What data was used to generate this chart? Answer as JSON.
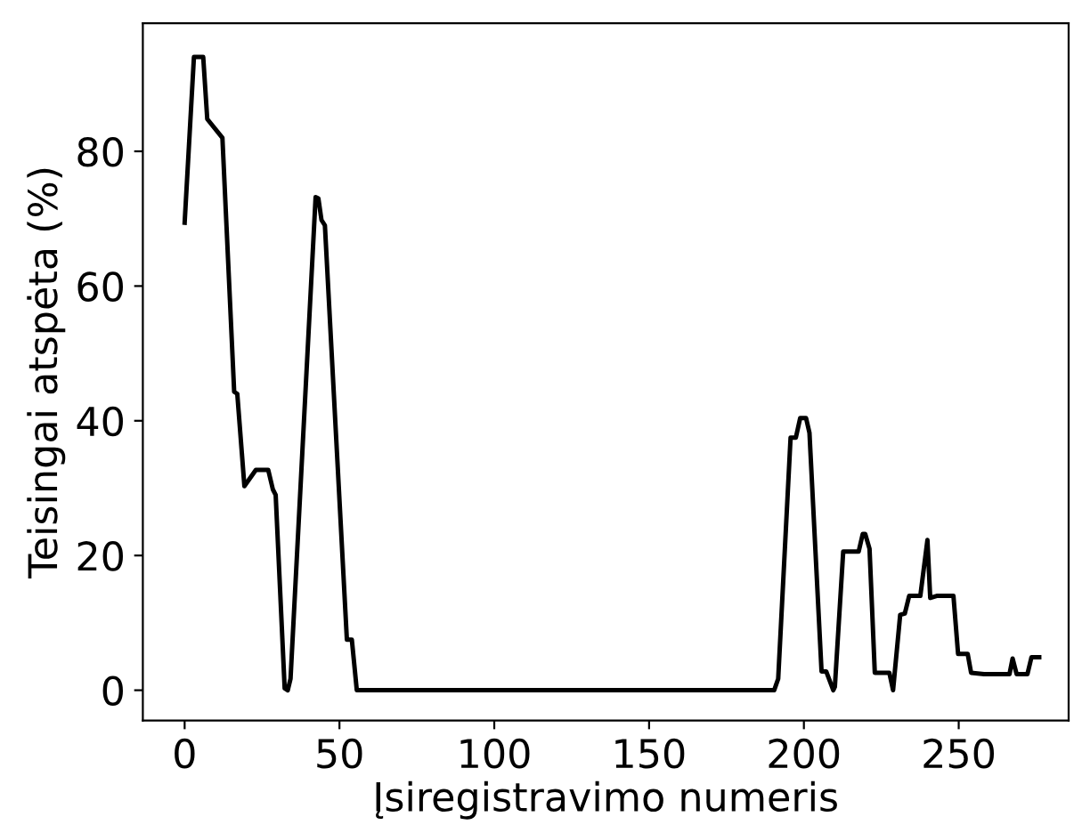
{
  "chart_data": {
    "type": "line",
    "xlabel": "Įsiregistravimo numeris",
    "ylabel": "Teisingai atspėta (%)",
    "xlim": [
      -13.5,
      285.5
    ],
    "ylim": [
      -4.5,
      99
    ],
    "xticks": [
      0,
      50,
      100,
      150,
      200,
      250
    ],
    "yticks": [
      0,
      20,
      40,
      60,
      80
    ],
    "grid": false,
    "marker": "none",
    "line_style": "solid",
    "series": [
      {
        "color": "#000000",
        "x": [
          0,
          3,
          6,
          7.3,
          12.2,
          16,
          17,
          19.3,
          23,
          27,
          28.5,
          29.4,
          32.3,
          33.3,
          34.2,
          42.3,
          43.2,
          44.2,
          45.3,
          52.4,
          54,
          55.6,
          100,
          150,
          190.4,
          191.7,
          195.7,
          197.4,
          198.8,
          200.7,
          201.8,
          205.7,
          207.2,
          209.5,
          210,
          212.7,
          217.7,
          219,
          219.8,
          221.2,
          222.9,
          227.6,
          228.8,
          231.1,
          232.6,
          234,
          237.6,
          239.9,
          240.8,
          242.9,
          248.3,
          249.8,
          252.9,
          254,
          258.2,
          266.4,
          267.4,
          268.7,
          272.2,
          273.5,
          276
        ],
        "values": [
          69.4,
          94,
          94,
          84.8,
          82,
          44.3,
          44,
          30.3,
          32.7,
          32.7,
          29.8,
          29,
          0.3,
          0,
          1.7,
          73.2,
          73,
          69.8,
          69,
          7.5,
          7.5,
          0,
          0,
          0,
          0,
          1.7,
          37.5,
          37.5,
          40.4,
          40.4,
          38.2,
          2.8,
          2.8,
          0,
          0.5,
          20.6,
          20.6,
          23.2,
          23.2,
          21,
          2.6,
          2.6,
          0,
          11.2,
          11.4,
          14,
          14,
          22.3,
          13.7,
          14,
          14,
          5.4,
          5.4,
          2.6,
          2.4,
          2.4,
          4.7,
          2.4,
          2.4,
          4.9,
          4.9
        ]
      }
    ]
  }
}
